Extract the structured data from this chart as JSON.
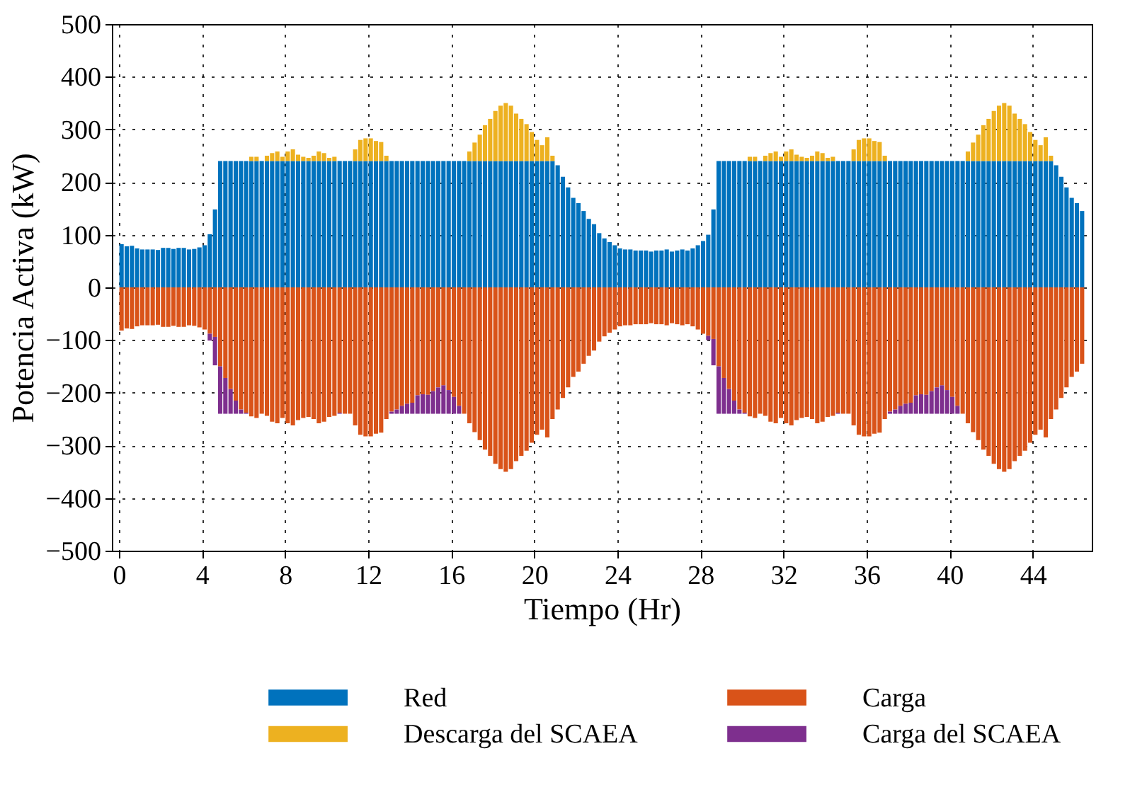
{
  "chart_data": {
    "type": "bar",
    "stacked": true,
    "xlabel": "Tiempo (Hr)",
    "ylabel": "Potencia Activa (kW)",
    "xlim": [
      0,
      46.5
    ],
    "xticks": [
      0,
      4,
      8,
      12,
      16,
      20,
      24,
      28,
      32,
      36,
      40,
      44
    ],
    "ylim": [
      -500,
      500
    ],
    "yticks": [
      -500,
      -400,
      -300,
      -200,
      -100,
      0,
      100,
      200,
      300,
      400,
      500
    ],
    "grid": true,
    "legend": "bottom",
    "x": [
      0.125,
      0.375,
      0.625,
      0.875,
      1.125,
      1.375,
      1.625,
      1.875,
      2.125,
      2.375,
      2.625,
      2.875,
      3.125,
      3.375,
      3.625,
      3.875,
      4.125,
      4.375,
      4.625,
      4.875,
      5.125,
      5.375,
      5.625,
      5.875,
      6.125,
      6.375,
      6.625,
      6.875,
      7.125,
      7.375,
      7.625,
      7.875,
      8.125,
      8.375,
      8.625,
      8.875,
      9.125,
      9.375,
      9.625,
      9.875,
      10.125,
      10.375,
      10.625,
      10.875,
      11.125,
      11.375,
      11.625,
      11.875,
      12.125,
      12.375,
      12.625,
      12.875,
      13.125,
      13.375,
      13.625,
      13.875,
      14.125,
      14.375,
      14.625,
      14.875,
      15.125,
      15.375,
      15.625,
      15.875,
      16.125,
      16.375,
      16.625,
      16.875,
      17.125,
      17.375,
      17.625,
      17.875,
      18.125,
      18.375,
      18.625,
      18.875,
      19.125,
      19.375,
      19.625,
      19.875,
      20.125,
      20.375,
      20.625,
      20.875,
      21.125,
      21.375,
      21.625,
      21.875,
      22.125,
      22.375,
      22.625,
      22.875,
      23.125,
      23.375,
      23.625,
      23.875,
      24.125,
      24.375,
      24.625,
      24.875,
      25.125,
      25.375,
      25.625,
      25.875,
      26.125,
      26.375,
      26.625,
      26.875,
      27.125,
      27.375,
      27.625,
      27.875,
      28.125,
      28.375,
      28.625,
      28.875,
      29.125,
      29.375,
      29.625,
      29.875,
      30.125,
      30.375,
      30.625,
      30.875,
      31.125,
      31.375,
      31.625,
      31.875,
      32.125,
      32.375,
      32.625,
      32.875,
      33.125,
      33.375,
      33.625,
      33.875,
      34.125,
      34.375,
      34.625,
      34.875,
      35.125,
      35.375,
      35.625,
      35.875,
      36.125,
      36.375,
      36.625,
      36.875,
      37.125,
      37.375,
      37.625,
      37.875,
      38.125,
      38.375,
      38.625,
      38.875,
      39.125,
      39.375,
      39.625,
      39.875,
      40.125,
      40.375,
      40.625,
      40.875,
      41.125,
      41.375,
      41.625,
      41.875,
      42.125,
      42.375,
      42.625,
      42.875,
      43.125,
      43.375,
      43.625,
      43.875,
      44.125,
      44.375,
      44.625,
      44.875,
      45.125,
      45.375,
      45.625,
      45.875,
      46.125,
      46.375
    ],
    "series": [
      {
        "name": "Red",
        "color": "#0072bd",
        "values": [
          82,
          78,
          79,
          74,
          72,
          72,
          72,
          71,
          75,
          75,
          73,
          75,
          75,
          72,
          73,
          76,
          80,
          101,
          148,
          240,
          240,
          240,
          240,
          240,
          240,
          240,
          240,
          240,
          240,
          240,
          240,
          240,
          240,
          240,
          240,
          240,
          240,
          240,
          240,
          240,
          240,
          240,
          240,
          240,
          240,
          240,
          240,
          240,
          240,
          240,
          240,
          240,
          240,
          240,
          240,
          240,
          240,
          240,
          240,
          240,
          240,
          240,
          240,
          240,
          240,
          240,
          240,
          240,
          240,
          240,
          240,
          240,
          240,
          240,
          240,
          240,
          240,
          240,
          240,
          240,
          240,
          240,
          240,
          240,
          232,
          210,
          190,
          170,
          160,
          145,
          130,
          120,
          103,
          93,
          86,
          80,
          74,
          72,
          72,
          70,
          70,
          70,
          68,
          70,
          70,
          72,
          68,
          70,
          72,
          70,
          74,
          80,
          88,
          100,
          148,
          240,
          240,
          240,
          240,
          240,
          240,
          240,
          240,
          240,
          240,
          240,
          240,
          240,
          240,
          240,
          240,
          240,
          240,
          240,
          240,
          240,
          240,
          240,
          240,
          240,
          240,
          240,
          240,
          240,
          240,
          240,
          240,
          240,
          240,
          240,
          240,
          240,
          240,
          240,
          240,
          240,
          240,
          240,
          240,
          240,
          240,
          240,
          240,
          240,
          240,
          240,
          240,
          240,
          240,
          240,
          240,
          240,
          240,
          240,
          240,
          240,
          240,
          240,
          240,
          240,
          232,
          210,
          190,
          170,
          160,
          145
        ]
      },
      {
        "name": "Descarga del SCAEA",
        "color": "#edb120",
        "values": [
          0,
          0,
          0,
          0,
          0,
          0,
          0,
          0,
          0,
          0,
          0,
          0,
          0,
          0,
          0,
          0,
          0,
          0,
          0,
          0,
          0,
          0,
          0,
          0,
          0,
          8,
          8,
          0,
          10,
          15,
          18,
          8,
          18,
          22,
          12,
          8,
          6,
          10,
          18,
          15,
          6,
          8,
          0,
          0,
          0,
          22,
          40,
          43,
          43,
          38,
          36,
          10,
          0,
          0,
          0,
          0,
          0,
          0,
          0,
          0,
          0,
          0,
          0,
          0,
          0,
          0,
          0,
          18,
          35,
          50,
          68,
          80,
          95,
          105,
          110,
          105,
          90,
          80,
          70,
          55,
          40,
          30,
          45,
          10,
          0,
          0,
          0,
          0,
          0,
          0,
          0,
          0,
          0,
          0,
          0,
          0,
          0,
          0,
          0,
          0,
          0,
          0,
          0,
          0,
          0,
          0,
          0,
          0,
          0,
          0,
          0,
          0,
          0,
          0,
          0,
          0,
          0,
          0,
          0,
          0,
          0,
          8,
          8,
          0,
          10,
          15,
          18,
          8,
          18,
          22,
          12,
          8,
          6,
          10,
          18,
          15,
          6,
          8,
          0,
          0,
          0,
          22,
          40,
          43,
          43,
          38,
          36,
          10,
          0,
          0,
          0,
          0,
          0,
          0,
          0,
          0,
          0,
          0,
          0,
          0,
          0,
          0,
          0,
          18,
          35,
          50,
          68,
          80,
          95,
          105,
          110,
          105,
          90,
          80,
          70,
          55,
          40,
          30,
          45,
          10,
          0,
          0,
          0,
          0,
          0,
          0
        ]
      },
      {
        "name": "Carga",
        "color": "#d95319",
        "values": [
          -82,
          -78,
          -79,
          -74,
          -72,
          -72,
          -72,
          -71,
          -75,
          -75,
          -73,
          -75,
          -75,
          -72,
          -73,
          -76,
          -80,
          -88,
          -94,
          -150,
          -172,
          -193,
          -215,
          -232,
          -238,
          -245,
          -248,
          -240,
          -244,
          -255,
          -258,
          -248,
          -258,
          -262,
          -252,
          -248,
          -246,
          -250,
          -258,
          -255,
          -246,
          -244,
          -238,
          -240,
          -240,
          -262,
          -280,
          -283,
          -283,
          -278,
          -276,
          -250,
          -236,
          -232,
          -225,
          -221,
          -219,
          -205,
          -203,
          -204,
          -197,
          -190,
          -186,
          -195,
          -208,
          -225,
          -240,
          -258,
          -275,
          -290,
          -308,
          -320,
          -335,
          -345,
          -350,
          -345,
          -330,
          -320,
          -310,
          -295,
          -280,
          -270,
          -285,
          -250,
          -232,
          -210,
          -190,
          -170,
          -160,
          -145,
          -130,
          -120,
          -103,
          -93,
          -86,
          -80,
          -74,
          -72,
          -72,
          -70,
          -70,
          -70,
          -68,
          -70,
          -70,
          -72,
          -68,
          -70,
          -72,
          -70,
          -74,
          -80,
          -88,
          -92,
          -98,
          -150,
          -172,
          -193,
          -215,
          -232,
          -238,
          -245,
          -248,
          -240,
          -244,
          -255,
          -258,
          -248,
          -258,
          -262,
          -252,
          -248,
          -246,
          -250,
          -258,
          -255,
          -246,
          -244,
          -238,
          -240,
          -240,
          -262,
          -280,
          -283,
          -283,
          -278,
          -276,
          -250,
          -236,
          -232,
          -225,
          -221,
          -219,
          -205,
          -203,
          -204,
          -197,
          -190,
          -186,
          -195,
          -208,
          -225,
          -240,
          -258,
          -275,
          -290,
          -308,
          -320,
          -335,
          -345,
          -350,
          -345,
          -330,
          -320,
          -310,
          -295,
          -280,
          -270,
          -285,
          -250,
          -232,
          -210,
          -190,
          -170,
          -160,
          -145
        ]
      },
      {
        "name": "Carga del SCAEA",
        "color": "#7e2f8e",
        "values": [
          0,
          0,
          0,
          0,
          0,
          0,
          0,
          0,
          0,
          0,
          0,
          0,
          0,
          0,
          0,
          0,
          0,
          -13,
          -54,
          -90,
          -68,
          -47,
          -25,
          -8,
          -2,
          0,
          0,
          0,
          0,
          0,
          0,
          0,
          0,
          0,
          0,
          0,
          0,
          0,
          0,
          0,
          0,
          0,
          -2,
          0,
          0,
          0,
          0,
          0,
          0,
          0,
          0,
          0,
          -4,
          -8,
          -15,
          -19,
          -21,
          -35,
          -37,
          -36,
          -43,
          -50,
          -54,
          -45,
          -32,
          -15,
          0,
          0,
          0,
          0,
          0,
          0,
          0,
          0,
          0,
          0,
          0,
          0,
          0,
          0,
          0,
          0,
          0,
          0,
          0,
          0,
          0,
          0,
          0,
          0,
          0,
          0,
          0,
          0,
          0,
          0,
          0,
          0,
          0,
          0,
          0,
          0,
          0,
          0,
          0,
          0,
          0,
          0,
          0,
          0,
          0,
          0,
          0,
          -8,
          -50,
          -90,
          -68,
          -47,
          -25,
          -8,
          -2,
          0,
          0,
          0,
          0,
          0,
          0,
          0,
          0,
          0,
          0,
          0,
          0,
          0,
          0,
          0,
          0,
          0,
          -2,
          0,
          0,
          0,
          0,
          0,
          0,
          0,
          0,
          0,
          -4,
          -8,
          -15,
          -19,
          -21,
          -35,
          -37,
          -36,
          -43,
          -50,
          -54,
          -45,
          -32,
          -15,
          0,
          0,
          0,
          0,
          0,
          0,
          0,
          0,
          0,
          0,
          0,
          0,
          0,
          0,
          0,
          0,
          0,
          0,
          0,
          0,
          0,
          0,
          0,
          0
        ]
      }
    ]
  }
}
